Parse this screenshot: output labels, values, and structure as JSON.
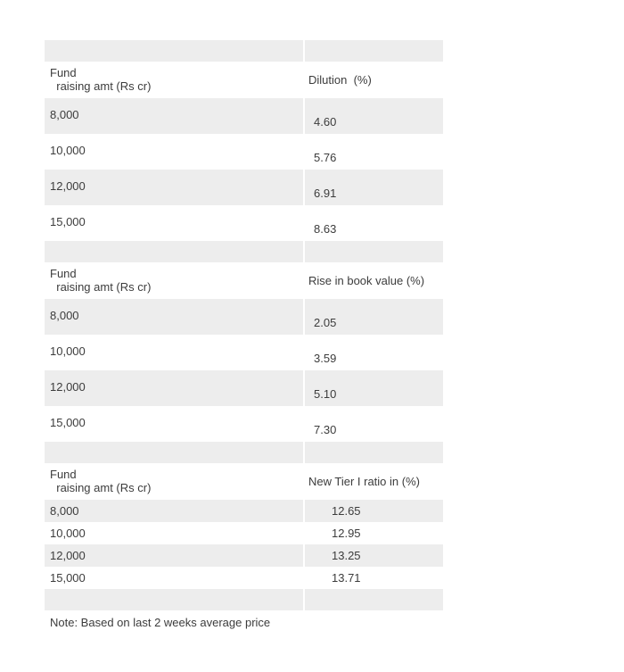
{
  "colors": {
    "stripe": "#ededed",
    "text": "#3c3c3c",
    "background": "#ffffff"
  },
  "sections": [
    {
      "name": "dilution",
      "header": {
        "col1": "Fund\n  raising amt (Rs cr)",
        "col2": "Dilution  (%)"
      },
      "rows": [
        {
          "amount": "8,000",
          "value": "4.60"
        },
        {
          "amount": "10,000",
          "value": "5.76"
        },
        {
          "amount": "12,000",
          "value": "6.91"
        },
        {
          "amount": "15,000",
          "value": "8.63"
        }
      ]
    },
    {
      "name": "rise-in-book-value",
      "header": {
        "col1": "Fund\n  raising amt (Rs cr)",
        "col2": "Rise in book value (%)"
      },
      "rows": [
        {
          "amount": "8,000",
          "value": "2.05"
        },
        {
          "amount": "10,000",
          "value": "3.59"
        },
        {
          "amount": "12,000",
          "value": "5.10"
        },
        {
          "amount": "15,000",
          "value": "7.30"
        }
      ]
    },
    {
      "name": "new-tier1-ratio",
      "header": {
        "col1": "Fund\n  raising amt (Rs cr)",
        "col2": "New Tier I ratio in (%)"
      },
      "rows": [
        {
          "amount": "8,000",
          "value": "12.65"
        },
        {
          "amount": "10,000",
          "value": "12.95"
        },
        {
          "amount": "12,000",
          "value": "13.25"
        },
        {
          "amount": "15,000",
          "value": "13.71"
        }
      ]
    }
  ],
  "note": "Note: Based on last 2 weeks average price",
  "chart_data": [
    {
      "type": "table",
      "title": "Dilution by fund raising amount",
      "columns": [
        "Fund raising amt (Rs cr)",
        "Dilution (%)"
      ],
      "rows": [
        [
          8000,
          4.6
        ],
        [
          10000,
          5.76
        ],
        [
          12000,
          6.91
        ],
        [
          15000,
          8.63
        ]
      ]
    },
    {
      "type": "table",
      "title": "Rise in book value by fund raising amount",
      "columns": [
        "Fund raising amt (Rs cr)",
        "Rise in book value (%)"
      ],
      "rows": [
        [
          8000,
          2.05
        ],
        [
          10000,
          3.59
        ],
        [
          12000,
          5.1
        ],
        [
          15000,
          7.3
        ]
      ]
    },
    {
      "type": "table",
      "title": "New Tier I ratio by fund raising amount",
      "columns": [
        "Fund raising amt (Rs cr)",
        "New Tier I ratio in (%)"
      ],
      "rows": [
        [
          8000,
          12.65
        ],
        [
          10000,
          12.95
        ],
        [
          12000,
          13.25
        ],
        [
          15000,
          13.71
        ]
      ],
      "note": "Note: Based on last 2 weeks average price"
    }
  ]
}
